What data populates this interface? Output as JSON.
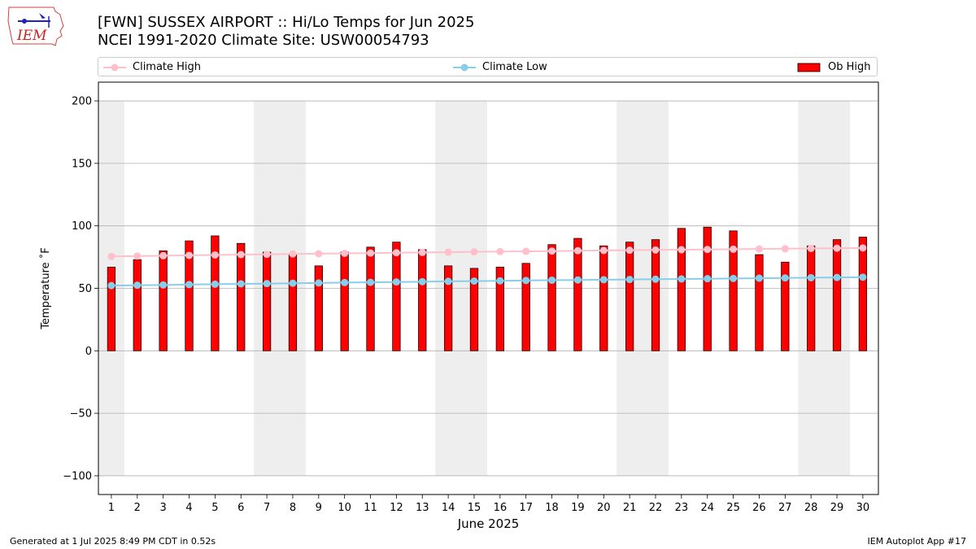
{
  "header": {
    "title_line1": "[FWN] SUSSEX AIRPORT :: Hi/Lo Temps for Jun 2025",
    "title_line2": "NCEI 1991-2020 Climate Site: USW00054793"
  },
  "logo": {
    "text": "IEM",
    "icon": "iowa-state-map-logo"
  },
  "legend": {
    "climate_high": "Climate High",
    "climate_low": "Climate Low",
    "ob_high": "Ob High"
  },
  "footer": {
    "left": "Generated at 1 Jul 2025 8:49 PM CDT in 0.52s",
    "right": "IEM Autoplot App #17"
  },
  "colors": {
    "bar": "#ff0000",
    "climate_high": "#ffc0cb",
    "climate_low": "#87ceeb",
    "weekend_shade": "#eeeeee",
    "grid": "#b0b0b0"
  },
  "chart_data": {
    "type": "bar",
    "xlabel": "June 2025",
    "ylabel": "Temperature ˚F",
    "ylim": [
      -115,
      215
    ],
    "yticks": [
      -100,
      -50,
      0,
      50,
      100,
      150,
      200
    ],
    "ytick_labels": [
      "−100",
      "−50",
      "0",
      "50",
      "100",
      "150",
      "200"
    ],
    "categories": [
      "1",
      "2",
      "3",
      "4",
      "5",
      "6",
      "7",
      "8",
      "9",
      "10",
      "11",
      "12",
      "13",
      "14",
      "15",
      "16",
      "17",
      "18",
      "19",
      "20",
      "21",
      "22",
      "23",
      "24",
      "25",
      "26",
      "27",
      "28",
      "29",
      "30"
    ],
    "grid": true,
    "legend_position": "top",
    "weekend_days": [
      1,
      7,
      8,
      14,
      15,
      21,
      22,
      28,
      29
    ],
    "series": [
      {
        "name": "Ob High",
        "kind": "bar",
        "values": [
          67,
          73,
          80,
          88,
          92,
          86,
          79,
          77,
          68,
          79,
          83,
          87,
          81,
          68,
          66,
          67,
          70,
          85,
          90,
          84,
          87,
          89,
          98,
          99,
          96,
          77,
          71,
          84,
          89,
          91
        ]
      },
      {
        "name": "Climate High",
        "kind": "line",
        "values": [
          75.5,
          75.8,
          76.1,
          76.4,
          76.7,
          77.0,
          77.2,
          77.5,
          77.7,
          78.0,
          78.2,
          78.5,
          78.7,
          78.9,
          79.2,
          79.4,
          79.6,
          79.8,
          80.1,
          80.3,
          80.5,
          80.7,
          80.9,
          81.1,
          81.3,
          81.5,
          81.7,
          81.9,
          82.1,
          82.3
        ]
      },
      {
        "name": "Climate Low",
        "kind": "line",
        "values": [
          52.2,
          52.5,
          52.7,
          53.0,
          53.3,
          53.6,
          53.8,
          54.1,
          54.3,
          54.6,
          54.8,
          55.1,
          55.3,
          55.6,
          55.8,
          56.0,
          56.3,
          56.5,
          56.7,
          56.9,
          57.1,
          57.3,
          57.5,
          57.7,
          57.9,
          58.1,
          58.3,
          58.5,
          58.7,
          58.9
        ]
      }
    ]
  }
}
